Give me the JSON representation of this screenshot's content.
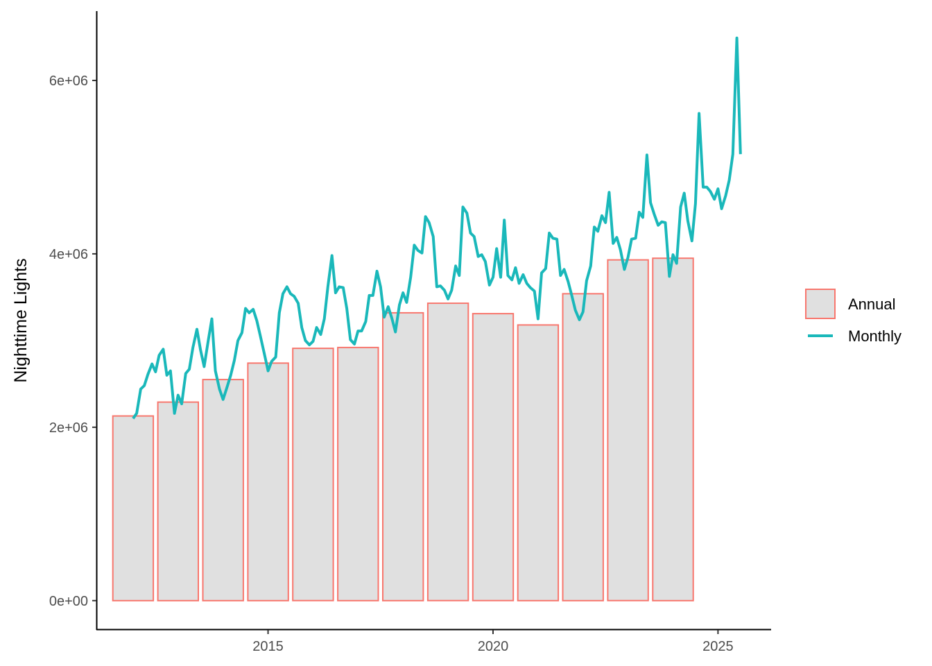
{
  "chart_data": {
    "type": "bar",
    "ylabel": "Nighttime Lights",
    "xlabel": "",
    "x_ticks": [
      2015,
      2020,
      2025
    ],
    "xlim": [
      2011.2,
      2026.15
    ],
    "y_ticks": [
      0,
      2000000,
      4000000,
      6000000
    ],
    "y_tick_labels": [
      "0e+00",
      "2e+06",
      "4e+06",
      "6e+06"
    ],
    "ylim": [
      -330000,
      6800000
    ],
    "grid": false,
    "legend_position": "right",
    "colors": {
      "annual_outline": "#F8766D",
      "annual_fill": "#E0E0E0",
      "monthly_line": "#1AB8BA",
      "axis": "#000000"
    },
    "legend": [
      {
        "label": "Annual",
        "kind": "bar"
      },
      {
        "label": "Monthly",
        "kind": "line"
      }
    ],
    "series": [
      {
        "name": "Annual",
        "type": "bar",
        "categories": [
          2012,
          2013,
          2014,
          2015,
          2016,
          2017,
          2018,
          2019,
          2020,
          2021,
          2022,
          2023,
          2024
        ],
        "values": [
          2130000,
          2290000,
          2550000,
          2740000,
          2910000,
          2920000,
          3320000,
          3430000,
          3310000,
          3180000,
          3540000,
          3930000,
          3950000
        ]
      },
      {
        "name": "Monthly",
        "type": "line",
        "x": [
          2012.0,
          2012.08,
          2012.17,
          2012.25,
          2012.33,
          2012.42,
          2012.5,
          2012.58,
          2012.67,
          2012.75,
          2012.83,
          2012.92,
          2013.0,
          2013.08,
          2013.17,
          2013.25,
          2013.33,
          2013.42,
          2013.5,
          2013.58,
          2013.67,
          2013.75,
          2013.83,
          2013.92,
          2014.0,
          2014.08,
          2014.17,
          2014.25,
          2014.33,
          2014.42,
          2014.5,
          2014.58,
          2014.67,
          2014.75,
          2014.83,
          2014.92,
          2015.0,
          2015.08,
          2015.17,
          2015.25,
          2015.33,
          2015.42,
          2015.5,
          2015.58,
          2015.67,
          2015.75,
          2015.83,
          2015.92,
          2016.0,
          2016.08,
          2016.17,
          2016.25,
          2016.33,
          2016.42,
          2016.5,
          2016.58,
          2016.67,
          2016.75,
          2016.83,
          2016.92,
          2017.0,
          2017.08,
          2017.17,
          2017.25,
          2017.33,
          2017.42,
          2017.5,
          2017.58,
          2017.67,
          2017.75,
          2017.83,
          2017.92,
          2018.0,
          2018.08,
          2018.17,
          2018.25,
          2018.33,
          2018.42,
          2018.5,
          2018.58,
          2018.67,
          2018.75,
          2018.83,
          2018.92,
          2019.0,
          2019.08,
          2019.17,
          2019.25,
          2019.33,
          2019.42,
          2019.5,
          2019.58,
          2019.67,
          2019.75,
          2019.83,
          2019.92,
          2020.0,
          2020.08,
          2020.17,
          2020.25,
          2020.33,
          2020.42,
          2020.5,
          2020.58,
          2020.67,
          2020.75,
          2020.83,
          2020.92,
          2021.0,
          2021.08,
          2021.17,
          2021.25,
          2021.33,
          2021.42,
          2021.5,
          2021.58,
          2021.67,
          2021.75,
          2021.83,
          2021.92,
          2022.0,
          2022.08,
          2022.17,
          2022.25,
          2022.33,
          2022.42,
          2022.5,
          2022.58,
          2022.67,
          2022.75,
          2022.83,
          2022.92,
          2023.0,
          2023.08,
          2023.17,
          2023.25,
          2023.33,
          2023.42,
          2023.5,
          2023.58,
          2023.67,
          2023.75,
          2023.83,
          2023.92,
          2024.0,
          2024.08,
          2024.17,
          2024.25,
          2024.33,
          2024.42,
          2024.5,
          2024.58,
          2024.67,
          2024.75,
          2024.83,
          2024.92,
          2025.0,
          2025.08,
          2025.17,
          2025.25,
          2025.33,
          2025.42,
          2025.5
        ],
        "values": [
          2100000,
          2160000,
          2440000,
          2480000,
          2610000,
          2730000,
          2640000,
          2830000,
          2900000,
          2600000,
          2650000,
          2160000,
          2370000,
          2270000,
          2620000,
          2670000,
          2920000,
          3130000,
          2890000,
          2700000,
          3000000,
          3250000,
          2650000,
          2440000,
          2320000,
          2450000,
          2600000,
          2770000,
          3000000,
          3090000,
          3370000,
          3320000,
          3360000,
          3230000,
          3050000,
          2840000,
          2650000,
          2760000,
          2810000,
          3320000,
          3540000,
          3620000,
          3540000,
          3510000,
          3430000,
          3150000,
          3000000,
          2950000,
          2990000,
          3150000,
          3070000,
          3250000,
          3620000,
          3980000,
          3550000,
          3620000,
          3610000,
          3370000,
          3010000,
          2960000,
          3110000,
          3110000,
          3220000,
          3520000,
          3520000,
          3800000,
          3620000,
          3270000,
          3390000,
          3260000,
          3100000,
          3410000,
          3550000,
          3440000,
          3730000,
          4100000,
          4040000,
          4010000,
          4430000,
          4360000,
          4200000,
          3620000,
          3630000,
          3580000,
          3480000,
          3580000,
          3860000,
          3750000,
          4540000,
          4470000,
          4240000,
          4200000,
          3970000,
          3990000,
          3910000,
          3640000,
          3730000,
          4060000,
          3730000,
          4390000,
          3750000,
          3700000,
          3840000,
          3660000,
          3760000,
          3660000,
          3610000,
          3570000,
          3250000,
          3780000,
          3830000,
          4240000,
          4180000,
          4170000,
          3750000,
          3820000,
          3680000,
          3520000,
          3350000,
          3240000,
          3330000,
          3690000,
          3860000,
          4310000,
          4260000,
          4440000,
          4360000,
          4710000,
          4120000,
          4190000,
          4050000,
          3820000,
          3960000,
          4170000,
          4180000,
          4480000,
          4420000,
          5140000,
          4590000,
          4460000,
          4330000,
          4370000,
          4360000,
          3740000,
          3990000,
          3890000,
          4540000,
          4700000,
          4380000,
          4150000,
          4580000,
          5620000,
          4770000,
          4770000,
          4720000,
          4630000,
          4750000,
          4520000,
          4670000,
          4850000,
          5150000,
          6490000,
          5150000
        ]
      }
    ]
  }
}
